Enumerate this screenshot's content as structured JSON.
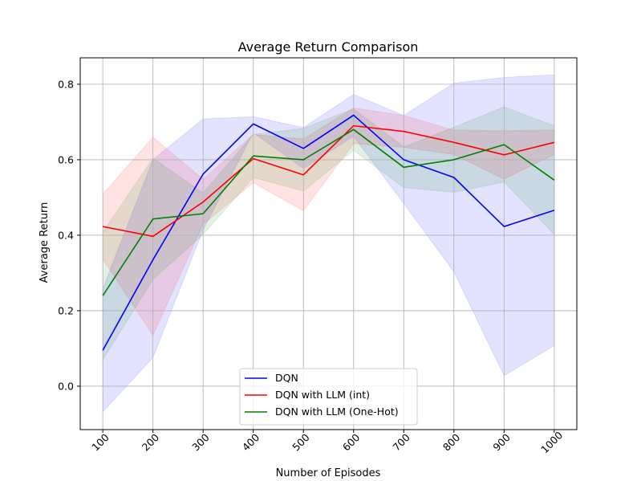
{
  "chart_data": {
    "type": "line",
    "title": "Average Return Comparison",
    "xlabel": "Number of Episodes",
    "ylabel": "Average Return",
    "x": [
      100,
      200,
      300,
      400,
      500,
      600,
      700,
      800,
      900,
      1000
    ],
    "xlim": [
      55,
      1045
    ],
    "ylim": [
      -0.115,
      0.87
    ],
    "yticks": [
      0.0,
      0.2,
      0.4,
      0.6,
      0.8
    ],
    "ytick_labels": [
      "0.0",
      "0.2",
      "0.4",
      "0.6",
      "0.8"
    ],
    "xtick_labels": [
      "100",
      "200",
      "300",
      "400",
      "500",
      "600",
      "700",
      "800",
      "900",
      "1000"
    ],
    "grid": true,
    "legend_position": "bottom-center",
    "series": [
      {
        "name": "DQN",
        "color": "#0000ff",
        "values": [
          0.095,
          0.335,
          0.562,
          0.695,
          0.63,
          0.718,
          0.6,
          0.553,
          0.423,
          0.466
        ],
        "lower": [
          -0.068,
          0.076,
          0.414,
          0.672,
          0.577,
          0.662,
          0.484,
          0.303,
          0.028,
          0.108
        ],
        "upper": [
          0.258,
          0.6,
          0.708,
          0.714,
          0.685,
          0.773,
          0.717,
          0.803,
          0.818,
          0.825
        ]
      },
      {
        "name": "DQN with LLM (int)",
        "color": "#ff0000",
        "values": [
          0.423,
          0.397,
          0.488,
          0.603,
          0.56,
          0.69,
          0.675,
          0.646,
          0.613,
          0.646
        ],
        "lower": [
          0.337,
          0.135,
          0.429,
          0.539,
          0.465,
          0.643,
          0.633,
          0.614,
          0.549,
          0.614
        ],
        "upper": [
          0.509,
          0.66,
          0.548,
          0.667,
          0.655,
          0.737,
          0.717,
          0.678,
          0.677,
          0.678
        ]
      },
      {
        "name": "DQN with LLM (One-Hot)",
        "color": "#008000",
        "values": [
          0.24,
          0.443,
          0.457,
          0.61,
          0.6,
          0.68,
          0.58,
          0.6,
          0.64,
          0.546
        ],
        "lower": [
          0.07,
          0.283,
          0.402,
          0.553,
          0.517,
          0.625,
          0.526,
          0.514,
          0.541,
          0.402
        ],
        "upper": [
          0.408,
          0.604,
          0.512,
          0.667,
          0.683,
          0.735,
          0.634,
          0.686,
          0.74,
          0.69
        ]
      }
    ]
  }
}
